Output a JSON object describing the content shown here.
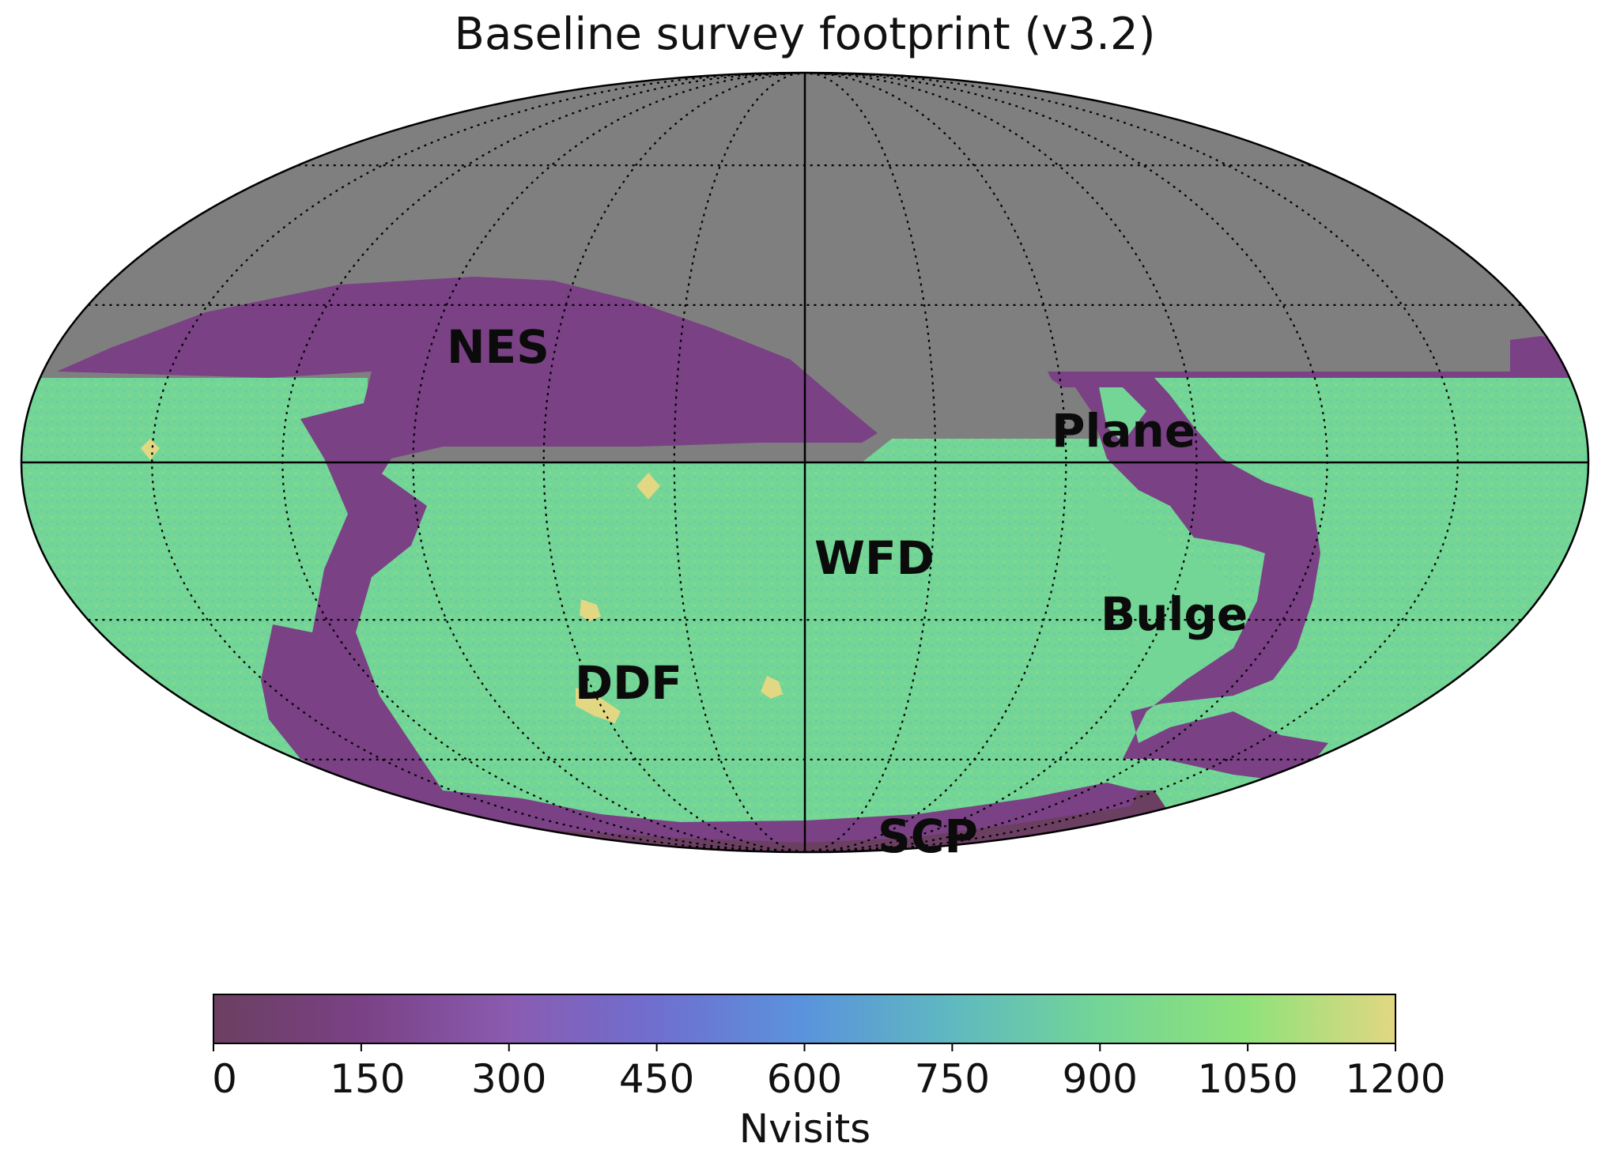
{
  "chart_data": {
    "type": "heatmap",
    "title": "Baseline survey footprint (v3.2)",
    "projection": "mollweide",
    "grid": true,
    "unobserved_color": "#7f7f7f",
    "regions": [
      {
        "id": "nes",
        "label": "NES",
        "approx_nvisits": 150
      },
      {
        "id": "plane",
        "label": "Plane",
        "approx_nvisits": 150
      },
      {
        "id": "wfd",
        "label": "WFD",
        "approx_nvisits": 850
      },
      {
        "id": "bulge",
        "label": "Bulge",
        "approx_nvisits": 150
      },
      {
        "id": "ddf",
        "label": "DDF",
        "approx_nvisits": 1200
      },
      {
        "id": "scp",
        "label": "SCP",
        "approx_nvisits": 150
      }
    ],
    "colorbar": {
      "label": "Nvisits",
      "min": 0,
      "max": 1200,
      "ticks": [
        0,
        150,
        300,
        450,
        600,
        750,
        900,
        1050,
        1200
      ],
      "tick_labels": [
        "0",
        "150",
        "300",
        "450",
        "600",
        "750",
        "900",
        "1050",
        "1200"
      ],
      "colors": [
        "#6b3f61",
        "#7a4185",
        "#8a5bb0",
        "#6f6fd0",
        "#5a93dc",
        "#5fb9c0",
        "#73d596",
        "#8fe27a",
        "#e2d782"
      ]
    }
  }
}
